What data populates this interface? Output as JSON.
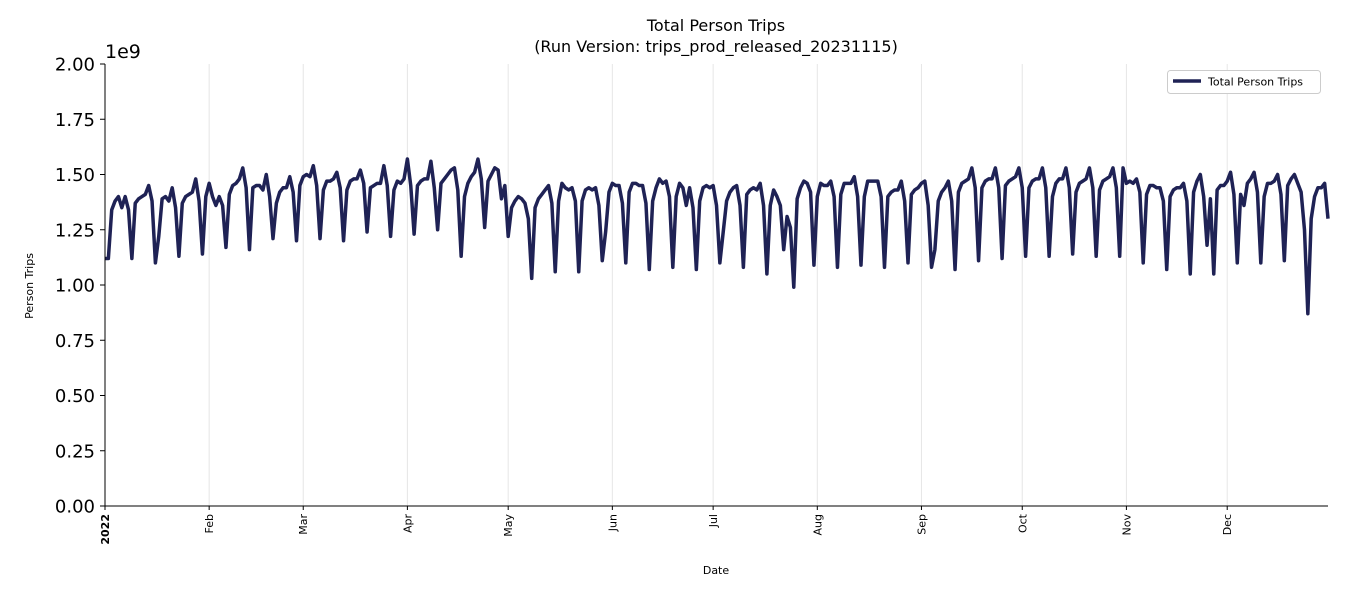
{
  "chart_data": {
    "type": "line",
    "title": "Total Person Trips",
    "subtitle": "(Run Version: trips_prod_released_20231115)",
    "xlabel": "Date",
    "ylabel": "Person Trips",
    "y_multiplier_label": "1e9",
    "ylim": [
      0,
      2.0
    ],
    "yticks": [
      "0.00",
      "0.25",
      "0.50",
      "0.75",
      "1.00",
      "1.25",
      "1.50",
      "1.75",
      "2.00"
    ],
    "x_range": [
      "2022-01-01",
      "2022-12-31"
    ],
    "frequency": "daily",
    "xticks": [
      {
        "label": "2022",
        "date": "2022-01-01",
        "bold": true
      },
      {
        "label": "Feb",
        "date": "2022-02-01"
      },
      {
        "label": "Mar",
        "date": "2022-03-01"
      },
      {
        "label": "Apr",
        "date": "2022-04-01"
      },
      {
        "label": "May",
        "date": "2022-05-01"
      },
      {
        "label": "Jun",
        "date": "2022-06-01"
      },
      {
        "label": "Jul",
        "date": "2022-07-01"
      },
      {
        "label": "Aug",
        "date": "2022-08-01"
      },
      {
        "label": "Sep",
        "date": "2022-09-01"
      },
      {
        "label": "Oct",
        "date": "2022-10-01"
      },
      {
        "label": "Nov",
        "date": "2022-11-01"
      },
      {
        "label": "Dec",
        "date": "2022-12-01"
      }
    ],
    "grid": "vertical, at month ticks",
    "legend_position": "top-right",
    "series": [
      {
        "name": "Total Person Trips",
        "color": "#1f2255",
        "values": [
          1.12,
          1.12,
          1.34,
          1.38,
          1.4,
          1.35,
          1.4,
          1.34,
          1.12,
          1.37,
          1.39,
          1.4,
          1.41,
          1.45,
          1.38,
          1.1,
          1.22,
          1.39,
          1.4,
          1.38,
          1.44,
          1.35,
          1.13,
          1.37,
          1.4,
          1.41,
          1.42,
          1.48,
          1.38,
          1.14,
          1.4,
          1.46,
          1.4,
          1.36,
          1.4,
          1.36,
          1.17,
          1.41,
          1.45,
          1.46,
          1.48,
          1.53,
          1.44,
          1.16,
          1.44,
          1.45,
          1.45,
          1.43,
          1.5,
          1.4,
          1.21,
          1.37,
          1.42,
          1.44,
          1.44,
          1.49,
          1.42,
          1.2,
          1.45,
          1.49,
          1.5,
          1.49,
          1.54,
          1.45,
          1.21,
          1.43,
          1.47,
          1.47,
          1.48,
          1.51,
          1.44,
          1.2,
          1.43,
          1.47,
          1.48,
          1.48,
          1.52,
          1.46,
          1.24,
          1.44,
          1.45,
          1.46,
          1.46,
          1.54,
          1.45,
          1.22,
          1.43,
          1.47,
          1.46,
          1.48,
          1.57,
          1.45,
          1.23,
          1.45,
          1.47,
          1.48,
          1.48,
          1.56,
          1.44,
          1.25,
          1.46,
          1.48,
          1.5,
          1.52,
          1.53,
          1.43,
          1.13,
          1.4,
          1.46,
          1.49,
          1.51,
          1.57,
          1.48,
          1.26,
          1.47,
          1.5,
          1.53,
          1.52,
          1.39,
          1.45,
          1.22,
          1.35,
          1.38,
          1.4,
          1.39,
          1.37,
          1.3,
          1.03,
          1.35,
          1.39,
          1.41,
          1.43,
          1.45,
          1.37,
          1.06,
          1.38,
          1.46,
          1.44,
          1.43,
          1.44,
          1.38,
          1.06,
          1.38,
          1.43,
          1.44,
          1.43,
          1.44,
          1.36,
          1.11,
          1.24,
          1.42,
          1.46,
          1.45,
          1.45,
          1.37,
          1.1,
          1.42,
          1.46,
          1.46,
          1.45,
          1.45,
          1.37,
          1.07,
          1.38,
          1.44,
          1.48,
          1.46,
          1.47,
          1.4,
          1.08,
          1.4,
          1.46,
          1.44,
          1.36,
          1.44,
          1.35,
          1.07,
          1.38,
          1.44,
          1.45,
          1.44,
          1.45,
          1.36,
          1.1,
          1.24,
          1.38,
          1.42,
          1.44,
          1.45,
          1.36,
          1.08,
          1.41,
          1.43,
          1.44,
          1.43,
          1.46,
          1.36,
          1.05,
          1.36,
          1.43,
          1.4,
          1.36,
          1.16,
          1.31,
          1.26,
          0.99,
          1.39,
          1.44,
          1.47,
          1.46,
          1.42,
          1.09,
          1.4,
          1.46,
          1.45,
          1.45,
          1.47,
          1.4,
          1.08,
          1.41,
          1.46,
          1.46,
          1.46,
          1.49,
          1.4,
          1.09,
          1.4,
          1.47,
          1.47,
          1.47,
          1.47,
          1.4,
          1.08,
          1.4,
          1.42,
          1.43,
          1.43,
          1.47,
          1.38,
          1.1,
          1.41,
          1.43,
          1.44,
          1.46,
          1.47,
          1.36,
          1.08,
          1.16,
          1.38,
          1.42,
          1.44,
          1.47,
          1.38,
          1.07,
          1.42,
          1.46,
          1.47,
          1.48,
          1.53,
          1.44,
          1.11,
          1.44,
          1.47,
          1.48,
          1.48,
          1.53,
          1.44,
          1.12,
          1.45,
          1.47,
          1.48,
          1.49,
          1.53,
          1.44,
          1.13,
          1.44,
          1.47,
          1.48,
          1.48,
          1.53,
          1.44,
          1.13,
          1.4,
          1.46,
          1.48,
          1.48,
          1.53,
          1.44,
          1.14,
          1.42,
          1.46,
          1.47,
          1.48,
          1.53,
          1.44,
          1.13,
          1.43,
          1.47,
          1.48,
          1.49,
          1.53,
          1.44,
          1.13,
          1.53,
          1.46,
          1.47,
          1.46,
          1.48,
          1.42,
          1.1,
          1.41,
          1.45,
          1.45,
          1.44,
          1.44,
          1.38,
          1.07,
          1.4,
          1.43,
          1.44,
          1.44,
          1.46,
          1.38,
          1.05,
          1.42,
          1.47,
          1.5,
          1.4,
          1.18,
          1.39,
          1.05,
          1.43,
          1.45,
          1.45,
          1.47,
          1.51,
          1.41,
          1.1,
          1.41,
          1.36,
          1.46,
          1.48,
          1.51,
          1.42,
          1.1,
          1.4,
          1.46,
          1.46,
          1.47,
          1.5,
          1.41,
          1.11,
          1.45,
          1.48,
          1.5,
          1.46,
          1.42,
          1.25,
          0.87,
          1.3,
          1.4,
          1.44,
          1.44,
          1.46,
          1.3
        ]
      }
    ]
  }
}
